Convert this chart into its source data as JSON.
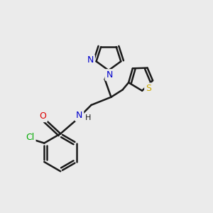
{
  "background_color": "#ebebeb",
  "atom_color_N": "#0000cc",
  "atom_color_O": "#dd0000",
  "atom_color_S": "#ccaa00",
  "atom_color_Cl": "#00aa00",
  "bond_color": "#1a1a1a",
  "bond_width": 1.8,
  "font_size_atom": 9,
  "font_size_h": 8,
  "figsize": [
    3.0,
    3.0
  ],
  "dpi": 100,
  "xlim": [
    0,
    10
  ],
  "ylim": [
    0,
    10
  ]
}
